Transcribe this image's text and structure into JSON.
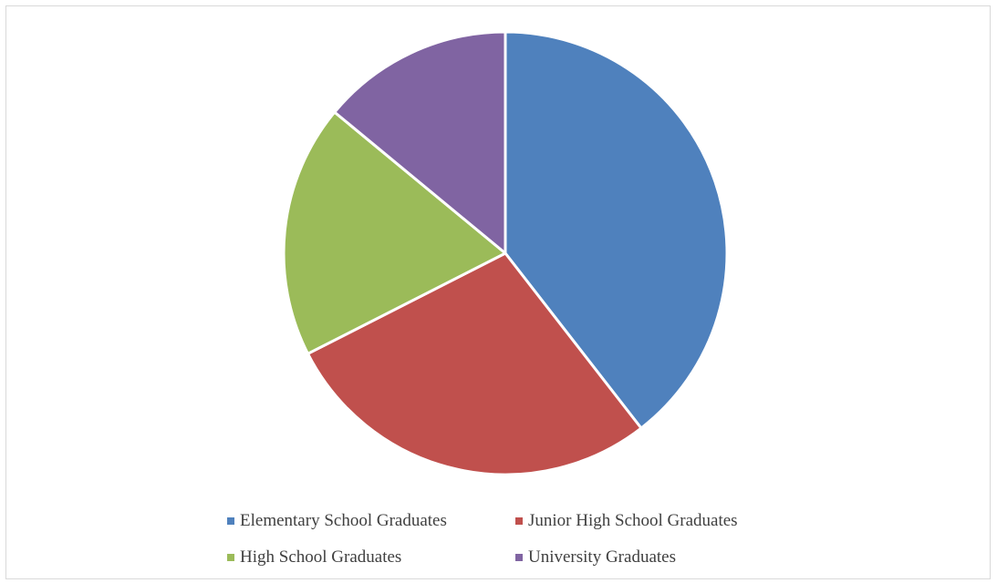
{
  "chart_data": {
    "type": "pie",
    "categories": [
      "Elementary School Graduates",
      "Junior High School Graduates",
      "High School Graduates",
      "University Graduates"
    ],
    "values": [
      39.5,
      28.0,
      18.5,
      14.0
    ],
    "colors": [
      "#4f81bd",
      "#c0504d",
      "#9bbb59",
      "#8064a2"
    ],
    "title": "",
    "legend_position": "bottom"
  }
}
